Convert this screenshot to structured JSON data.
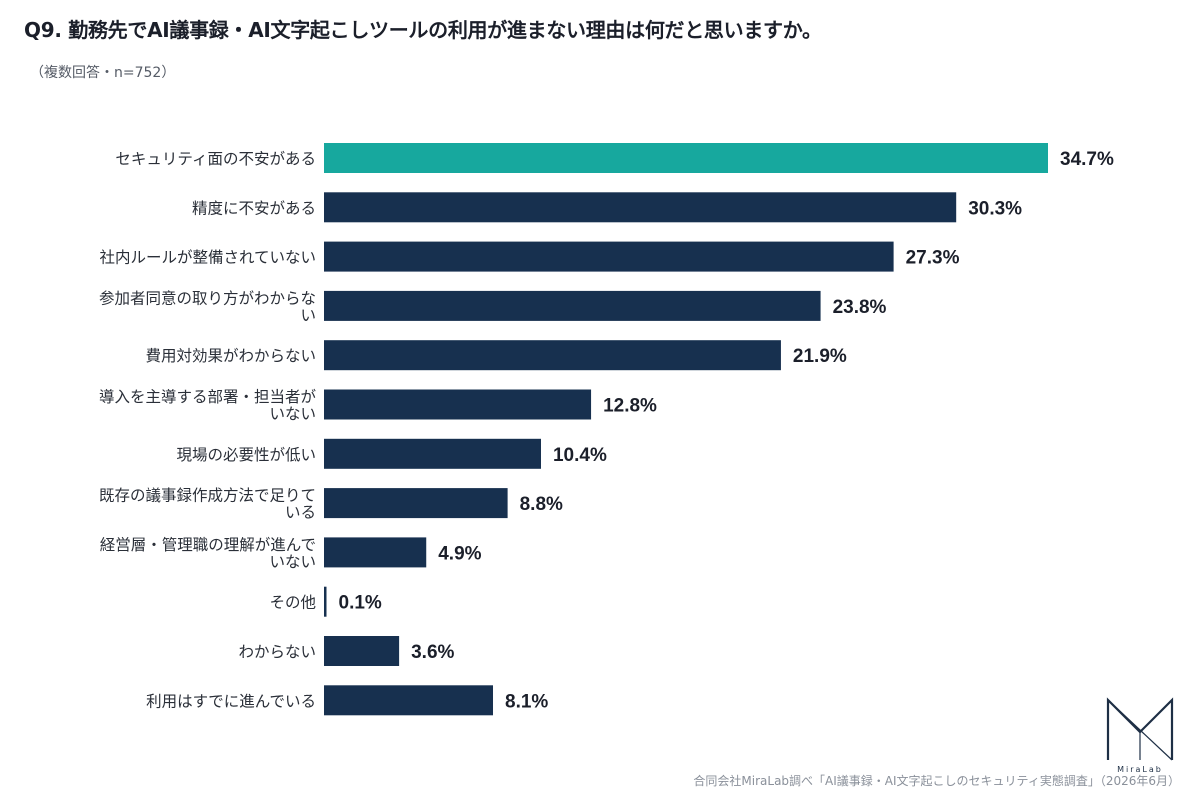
{
  "header": {
    "title": "Q9. 勤務先でAI議事録・AI文字起こしツールの利用が進まない理由は何だと思いますか。",
    "subtitle": "（複数回答・n=752）"
  },
  "footer": {
    "source": "合同会社MiraLab調べ「AI議事録・AI文字起こしのセキュリティ実態調査」（2026年6月）",
    "logo_text": "MiraLab"
  },
  "colors": {
    "highlight": "#17a89e",
    "bar": "#17304f",
    "label": "#2a2f38",
    "value": "#1b1f2a"
  },
  "chart_data": {
    "type": "bar",
    "orientation": "horizontal",
    "categories": [
      [
        "セキュリティ面の不安がある"
      ],
      [
        "精度に不安がある"
      ],
      [
        "社内ルールが整備されていない"
      ],
      [
        "参加者同意の取り方がわからな",
        "い"
      ],
      [
        "費用対効果がわからない"
      ],
      [
        "導入を主導する部署・担当者が",
        "いない"
      ],
      [
        "現場の必要性が低い"
      ],
      [
        "既存の議事録作成方法で足りて",
        "いる"
      ],
      [
        "経営層・管理職の理解が進んで",
        "いない"
      ],
      [
        "その他"
      ],
      [
        "わからない"
      ],
      [
        "利用はすでに進んでいる"
      ]
    ],
    "values": [
      34.7,
      30.3,
      27.3,
      23.8,
      21.9,
      12.8,
      10.4,
      8.8,
      4.9,
      0.1,
      3.6,
      8.1
    ],
    "value_labels": [
      "34.7%",
      "30.3%",
      "27.3%",
      "23.8%",
      "21.9%",
      "12.8%",
      "10.4%",
      "8.8%",
      "4.9%",
      "0.1%",
      "3.6%",
      "8.1%"
    ],
    "highlight_index": 0,
    "xlim": [
      0,
      34.7
    ],
    "grid": false,
    "legend": "none"
  }
}
